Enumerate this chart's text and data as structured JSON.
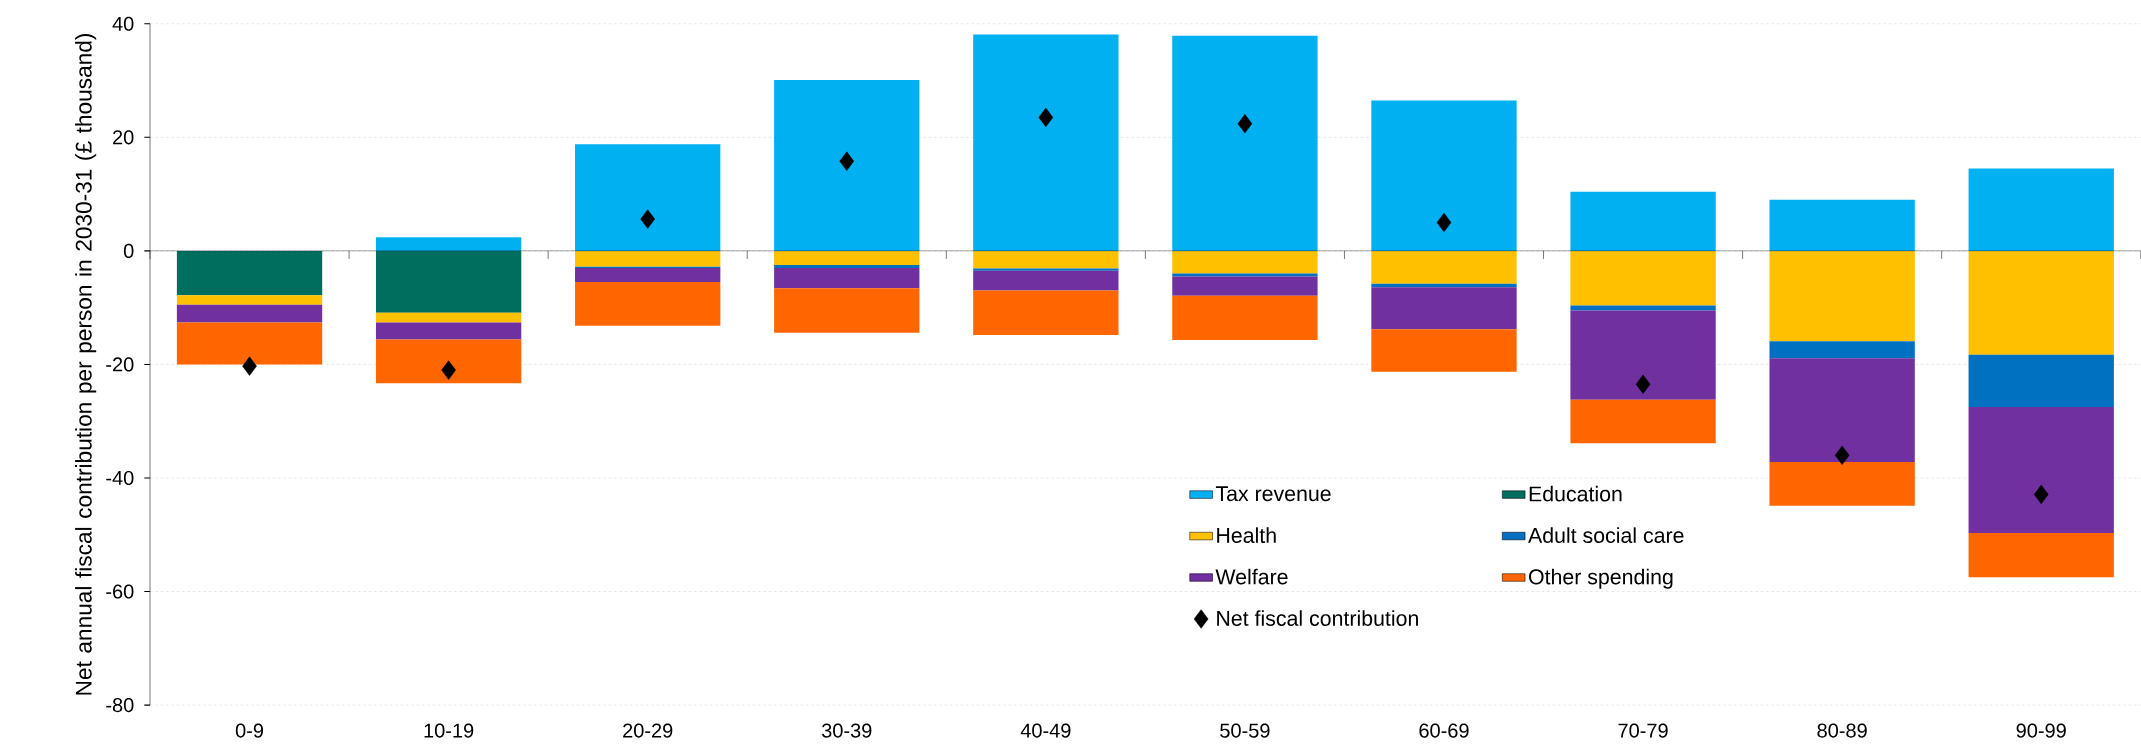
{
  "chart_data": {
    "type": "bar",
    "stacked": true,
    "ylabel": "Net annual fiscal contribution per person in 2030-31 (£ thousand)",
    "categories": [
      "0-9",
      "10-19",
      "20-29",
      "30-39",
      "40-49",
      "50-59",
      "60-69",
      "70-79",
      "80-89",
      "90-99"
    ],
    "series": [
      {
        "name": "Tax revenue",
        "color": "#00b0f0",
        "values": [
          null,
          2.4,
          18.8,
          30.1,
          38.1,
          37.9,
          26.5,
          10.4,
          9.0,
          14.5
        ]
      },
      {
        "name": "Education",
        "color": "#006e5f",
        "values": [
          -7.8,
          -10.9,
          null,
          null,
          null,
          null,
          null,
          null,
          null,
          null
        ]
      },
      {
        "name": "Health",
        "color": "#ffc000",
        "values": [
          -1.7,
          -1.7,
          -2.8,
          -2.5,
          -3.1,
          -4.0,
          -5.8,
          -9.6,
          -15.9,
          -18.3
        ]
      },
      {
        "name": "Adult social care",
        "color": "#0070c0",
        "values": [
          null,
          null,
          -0.2,
          -0.5,
          -0.4,
          -0.5,
          -0.6,
          -0.9,
          -3.0,
          -9.2
        ]
      },
      {
        "name": "Welfare",
        "color": "#7030a0",
        "values": [
          -3.1,
          -3.0,
          -2.5,
          -3.6,
          -3.5,
          -3.4,
          -7.4,
          -15.7,
          -18.3,
          -22.2
        ]
      },
      {
        "name": "Other spending",
        "color": "#ff6600",
        "values": [
          -7.4,
          -7.7,
          -7.7,
          -7.8,
          -7.8,
          -7.8,
          -7.5,
          -7.7,
          -7.7,
          -7.8
        ]
      },
      {
        "name": "Net fiscal contribution",
        "type": "scatter",
        "marker": "diamond",
        "color": "#000000",
        "values": [
          -20.3,
          -21.0,
          5.6,
          15.8,
          23.5,
          22.4,
          5.0,
          -23.5,
          -36.0,
          -42.9
        ]
      }
    ],
    "ylim": [
      -80,
      40
    ],
    "yticks": [
      -80,
      -60,
      -40,
      -20,
      0,
      20,
      40
    ],
    "grid": "y",
    "legend": "bottom right"
  }
}
